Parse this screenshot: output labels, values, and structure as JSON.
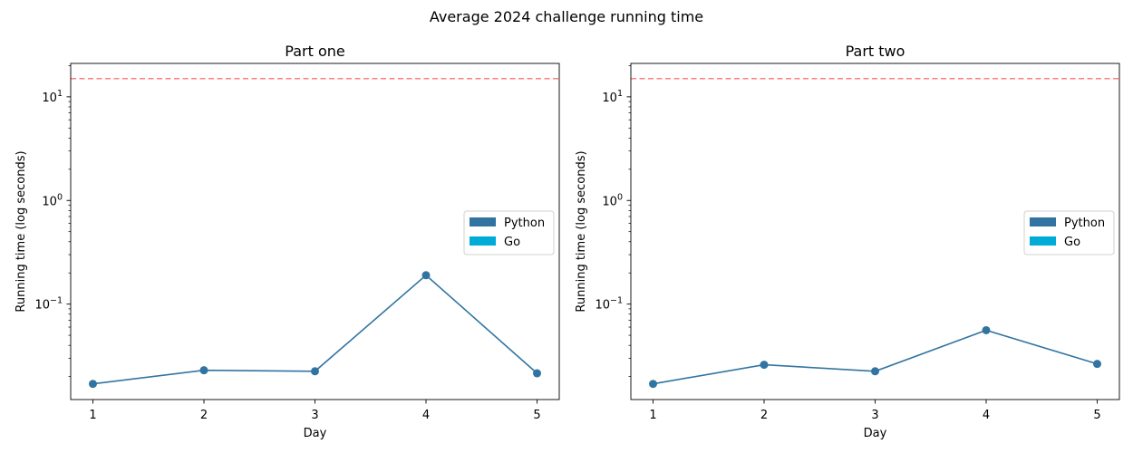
{
  "figure_title": "Average 2024 challenge running time",
  "colors": {
    "python": "#3274a1",
    "go": "#00acd7",
    "threshold": "#ff7f7f",
    "axes": "#000000"
  },
  "chart_data": [
    {
      "type": "line",
      "title": "Part one",
      "xlabel": "Day",
      "ylabel": "Running time (log seconds)",
      "yscale": "log",
      "ylim": [
        0.012,
        21
      ],
      "xlim": [
        0.8,
        5.2
      ],
      "x": [
        1,
        2,
        3,
        4,
        5
      ],
      "xticks": [
        "1",
        "2",
        "3",
        "4",
        "5"
      ],
      "yticks": [
        {
          "value": 0.1,
          "base": "10",
          "exp": "−1"
        },
        {
          "value": 1,
          "base": "10",
          "exp": "0"
        },
        {
          "value": 10,
          "base": "10",
          "exp": "1"
        }
      ],
      "series": [
        {
          "name": "Python",
          "color": "#3274a1",
          "values": [
            0.017,
            0.023,
            0.0225,
            0.19,
            0.0215
          ],
          "marker": "circle"
        }
      ],
      "hline": {
        "value": 15,
        "style": "dashed",
        "color": "#ff7f7f"
      },
      "legend": {
        "entries": [
          "Python",
          "Go"
        ],
        "position": "center-right"
      }
    },
    {
      "type": "line",
      "title": "Part two",
      "xlabel": "Day",
      "ylabel": "Running time (log seconds)",
      "yscale": "log",
      "ylim": [
        0.012,
        21
      ],
      "xlim": [
        0.8,
        5.2
      ],
      "x": [
        1,
        2,
        3,
        4,
        5
      ],
      "xticks": [
        "1",
        "2",
        "3",
        "4",
        "5"
      ],
      "yticks": [
        {
          "value": 0.1,
          "base": "10",
          "exp": "−1"
        },
        {
          "value": 1,
          "base": "10",
          "exp": "0"
        },
        {
          "value": 10,
          "base": "10",
          "exp": "1"
        }
      ],
      "series": [
        {
          "name": "Python",
          "color": "#3274a1",
          "values": [
            0.017,
            0.026,
            0.0225,
            0.056,
            0.0265
          ],
          "marker": "circle"
        }
      ],
      "hline": {
        "value": 15,
        "style": "dashed",
        "color": "#ff7f7f"
      },
      "legend": {
        "entries": [
          "Python",
          "Go"
        ],
        "position": "center-right"
      }
    }
  ]
}
